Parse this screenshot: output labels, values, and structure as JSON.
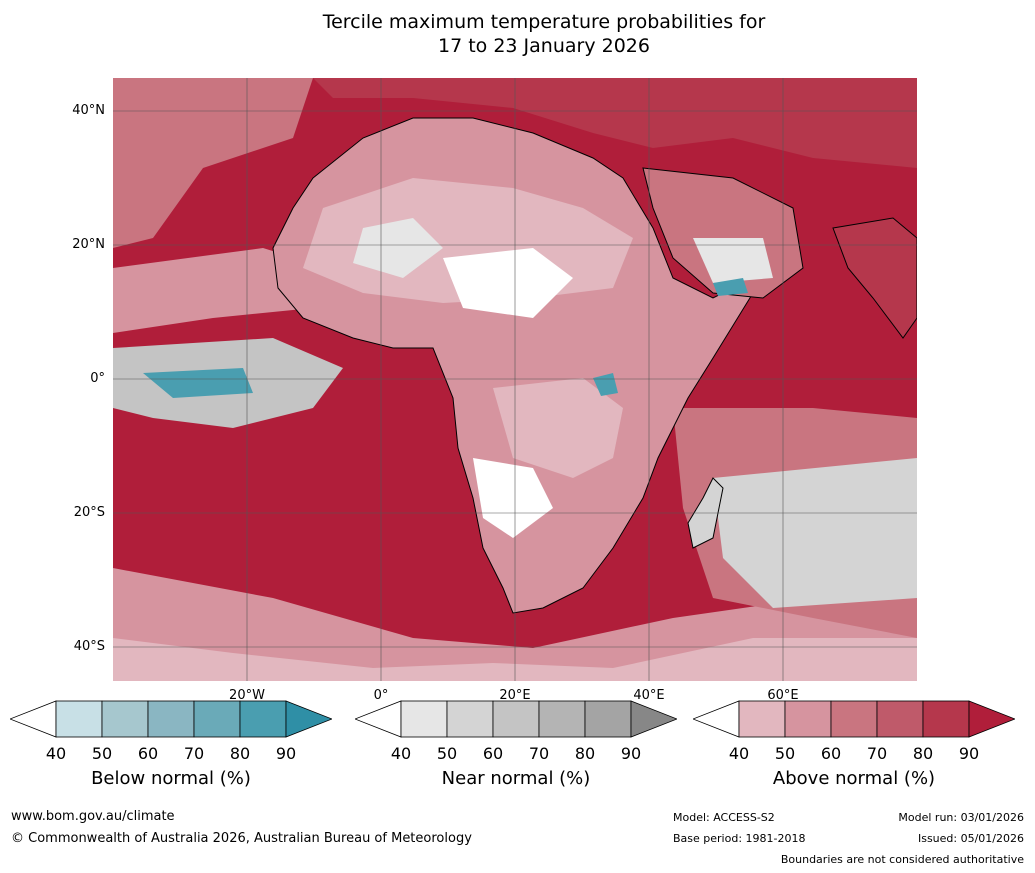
{
  "title_line1": "Tercile maximum temperature probabilities for",
  "title_line2": "17 to 23 January 2026",
  "lat_labels": [
    "40°N",
    "20°N",
    "0°",
    "20°S",
    "40°S"
  ],
  "lon_labels": [
    "20°W",
    "0°",
    "20°E",
    "40°E",
    "60°E"
  ],
  "legends": [
    {
      "title": "Below normal (%)",
      "ticks": [
        "40",
        "50",
        "60",
        "70",
        "80",
        "90"
      ],
      "colors": [
        "#ffffff",
        "#c8e0e6",
        "#a6c7ce",
        "#8ab6c2",
        "#6aaab8",
        "#4a9eb0",
        "#2f8fa6"
      ]
    },
    {
      "title": "Near normal (%)",
      "ticks": [
        "40",
        "50",
        "60",
        "70",
        "80",
        "90"
      ],
      "colors": [
        "#ffffff",
        "#e6e6e6",
        "#d4d4d4",
        "#c4c4c4",
        "#b4b4b4",
        "#a4a4a4",
        "#878787"
      ]
    },
    {
      "title": "Above normal (%)",
      "ticks": [
        "40",
        "50",
        "60",
        "70",
        "80",
        "90"
      ],
      "colors": [
        "#ffffff",
        "#e2b7bf",
        "#d6949f",
        "#c97580",
        "#bf5a6a",
        "#b5374c",
        "#b01e3a"
      ]
    }
  ],
  "footer": {
    "website": "www.bom.gov.au/climate",
    "copyright": "© Commonwealth of Australia 2026, Australian Bureau of Meteorology",
    "model": "Model: ACCESS-S2",
    "base_period": "Base period: 1981-2018",
    "model_run": "Model run: 03/01/2026",
    "issued": "Issued: 05/01/2026",
    "disclaimer": "Boundaries are not considered authoritative"
  },
  "palette": {
    "ocean_hot": "#b01e3a",
    "land_warm": "#d6949f",
    "land_light": "#e2b7bf",
    "near": "#d4d4d4",
    "below": "#4a9eb0"
  }
}
